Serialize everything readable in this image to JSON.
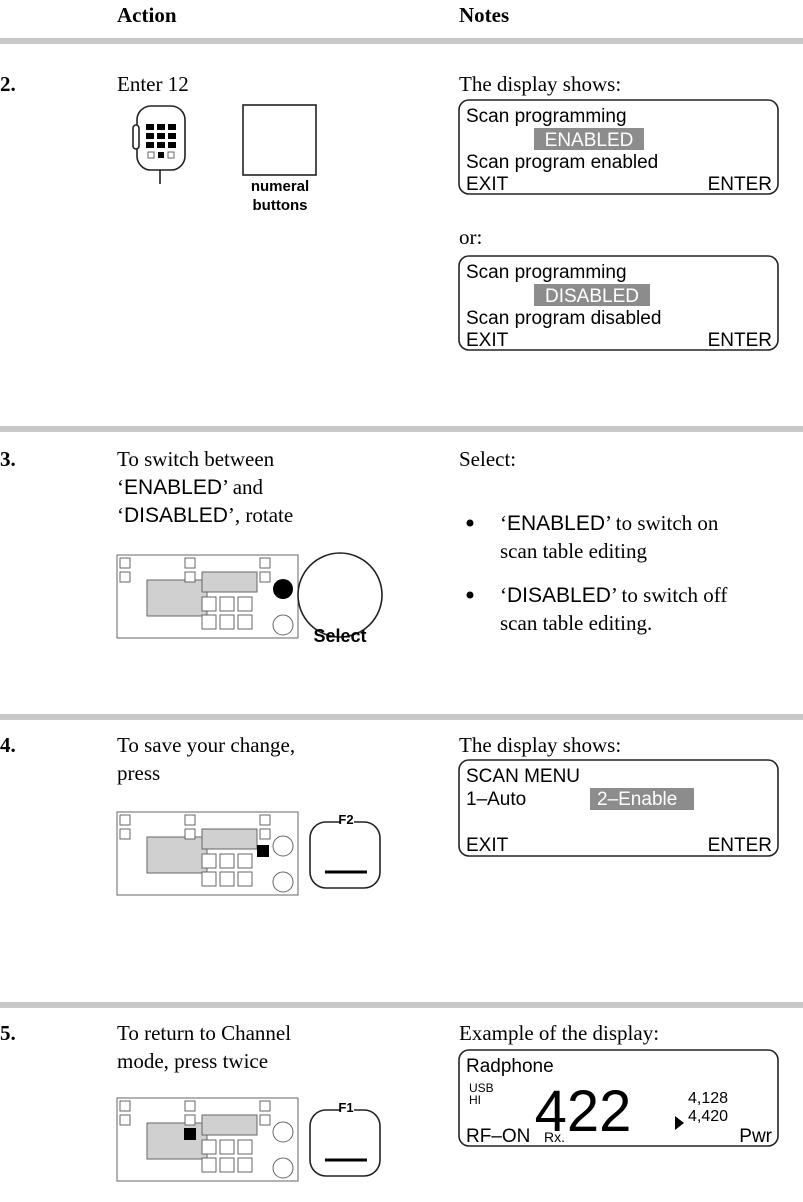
{
  "header": {
    "action": "Action",
    "notes": "Notes"
  },
  "steps": [
    {
      "number": "2.",
      "action": [
        [
          "Enter 12"
        ]
      ],
      "image_label": [
        "numeral",
        "buttons"
      ],
      "notes": {
        "intro": "The display shows:",
        "display_1": {
          "lines": [
            "Scan programming",
            "ENABLED",
            "Scan program enabled"
          ],
          "left_key": "EXIT",
          "right_key": "ENTER"
        },
        "separator": "or:",
        "display_2": {
          "lines": [
            "Scan programming",
            "DISABLED",
            "Scan program disabled"
          ],
          "left_key": "EXIT",
          "right_key": "ENTER"
        }
      }
    },
    {
      "number": "3.",
      "action": [
        [
          "To switch between"
        ],
        [
          "‘",
          "ENABLED",
          "’ and"
        ],
        [
          "‘",
          "DISABLED",
          "’, rotate"
        ]
      ],
      "knob_label": "Select",
      "notes": {
        "intro": "Select:",
        "bullets": [
          [
            [
              "‘",
              "ENABLED",
              "’ to switch on"
            ],
            [
              "scan table editing"
            ]
          ],
          [
            [
              "‘",
              "DISABLED",
              "’ to switch off"
            ],
            [
              "scan table editing."
            ]
          ]
        ]
      }
    },
    {
      "number": "4.",
      "action": [
        [
          "To save your change,"
        ],
        [
          "press"
        ]
      ],
      "key_label": "F2",
      "notes": {
        "intro": "The display shows:",
        "display": {
          "title": "SCAN MENU",
          "option_1": "1–Auto",
          "option_2": "2–Enable",
          "left_key": "EXIT",
          "right_key": "ENTER"
        }
      }
    },
    {
      "number": "5.",
      "action": [
        [
          "To return to Channel"
        ],
        [
          "mode, press twice"
        ]
      ],
      "key_label": "F1",
      "notes": {
        "intro": "Example of the display:",
        "display": {
          "title": "Radphone",
          "mode": "USB",
          "power": "HI",
          "channel": "422",
          "rx_freq": "4,128",
          "tx_freq": "4,420",
          "status": "RF–ON",
          "state": "Rx.",
          "key": "Pwr"
        }
      }
    }
  ]
}
